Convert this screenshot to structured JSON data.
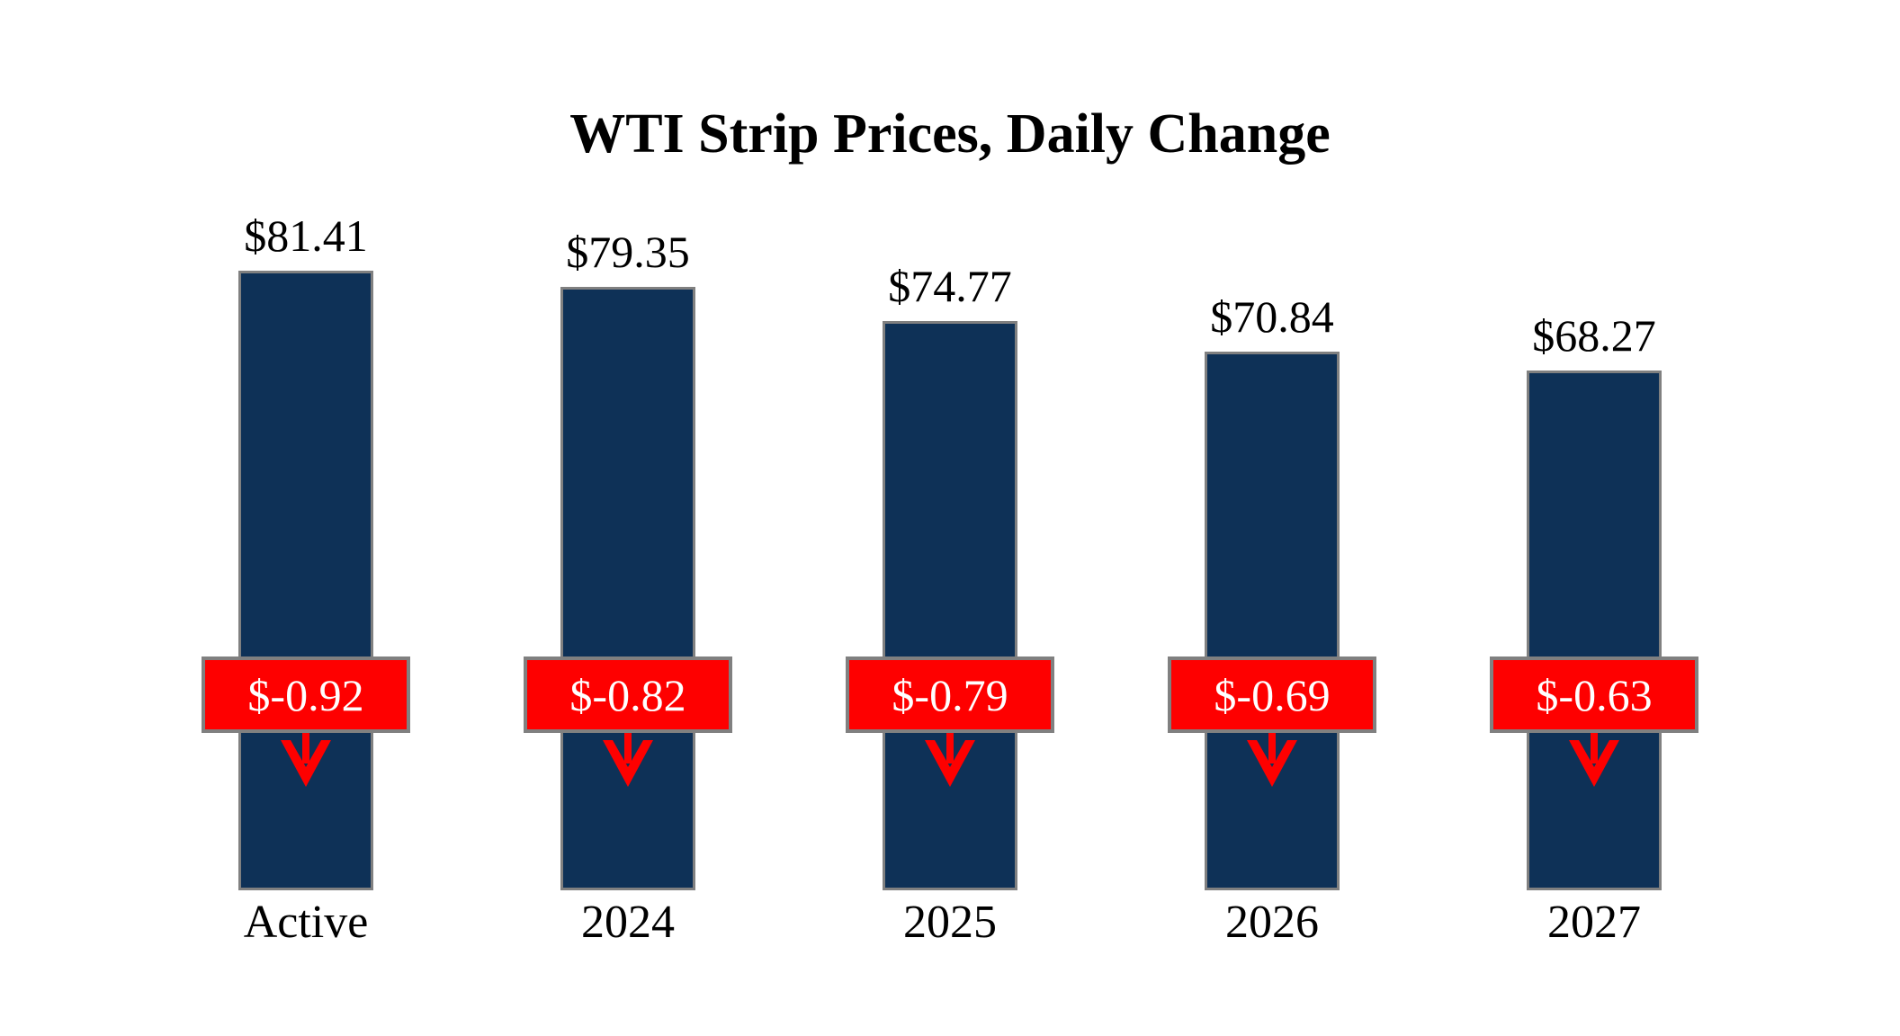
{
  "page": {
    "background_color": "#FFFFFF"
  },
  "chart_data": {
    "type": "bar",
    "title": "WTI Strip Prices, Daily Change",
    "categories": [
      "Active",
      "2024",
      "2025",
      "2026",
      "2027"
    ],
    "values": [
      81.41,
      79.35,
      74.77,
      70.84,
      68.27
    ],
    "value_labels": [
      "$81.41",
      "$79.35",
      "$74.77",
      "$70.84",
      "$68.27"
    ],
    "changes": [
      -0.92,
      -0.82,
      -0.79,
      -0.69,
      -0.63
    ],
    "change_labels": [
      "$-0.92",
      "$-0.82",
      "$-0.79",
      "$-0.69",
      "$-0.63"
    ],
    "xlabel": "",
    "ylabel": "",
    "ylim": [
      0,
      85
    ],
    "grid": false,
    "legend": false,
    "annotation_style": "red badge with daily change value and red down arrow overlaid on each bar"
  },
  "colors": {
    "bar_fill": "#0E3157",
    "bar_border": "#808080",
    "badge_fill": "#FE0000",
    "badge_border": "#808080",
    "badge_text": "#FFFFFF",
    "arrow": "#FE0000",
    "title_text": "#000000",
    "label_text": "#000000"
  }
}
